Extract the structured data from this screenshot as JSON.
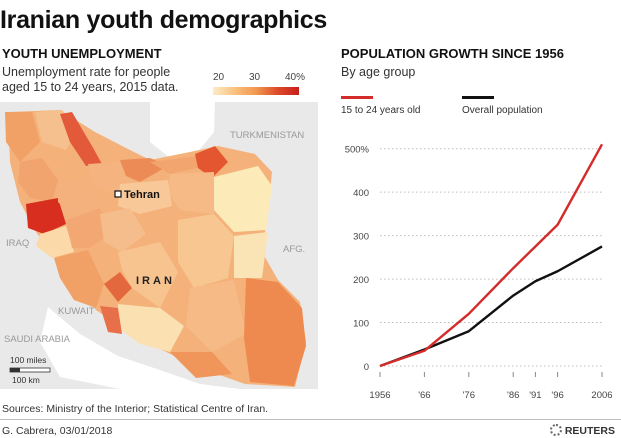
{
  "title": "Iranian youth demographics",
  "left_panel": {
    "heading": "YOUTH UNEMPLOYMENT",
    "subtitle_line1": "Unemployment rate for people",
    "subtitle_line2": "aged 15 to 24 years, 2015 data.",
    "scale_labels": [
      "20",
      "30",
      "40%"
    ],
    "scale_colors": [
      "#fdebc8",
      "#f9c27e",
      "#f19850",
      "#dd4a2b",
      "#c81e1a"
    ],
    "map": {
      "country_label": "IRAN",
      "capital_label": "Tehran",
      "neighbors": [
        "TURKMENISTAN",
        "AFG.",
        "IRAQ",
        "KUWAIT",
        "SAUDI ARABIA"
      ],
      "scalebar_miles": "100 miles",
      "scalebar_km": "100 km"
    }
  },
  "right_panel": {
    "heading": "POPULATION GROWTH SINCE 1956",
    "subtitle": "By age group",
    "series_labels": [
      "15 to 24 years old",
      "Overall population"
    ],
    "series_colors": [
      "#d42b2b",
      "#111111"
    ]
  },
  "chart_data": {
    "type": "line",
    "title": "POPULATION GROWTH SINCE 1956",
    "subtitle": "By age group",
    "x": [
      1956,
      1966,
      1976,
      1986,
      1991,
      1996,
      2006
    ],
    "x_tick_labels": [
      "1956",
      "'66",
      "'76",
      "'86",
      "'91",
      "'96",
      "2006"
    ],
    "y_tick_labels": [
      "0",
      "100",
      "200",
      "300",
      "400",
      "500%"
    ],
    "ylim": [
      0,
      520
    ],
    "ylabel": "",
    "xlabel": "",
    "series": [
      {
        "name": "15 to 24 years old",
        "color": "#d42b2b",
        "values": [
          0,
          35,
          120,
          225,
          275,
          325,
          510
        ]
      },
      {
        "name": "Overall population",
        "color": "#111111",
        "values": [
          0,
          38,
          80,
          162,
          195,
          218,
          275
        ]
      }
    ]
  },
  "footer": {
    "sources": "Sources: Ministry of the Interior; Statistical Centre of Iran.",
    "credit": "G. Cabrera, 03/01/2018",
    "brand": "REUTERS"
  }
}
